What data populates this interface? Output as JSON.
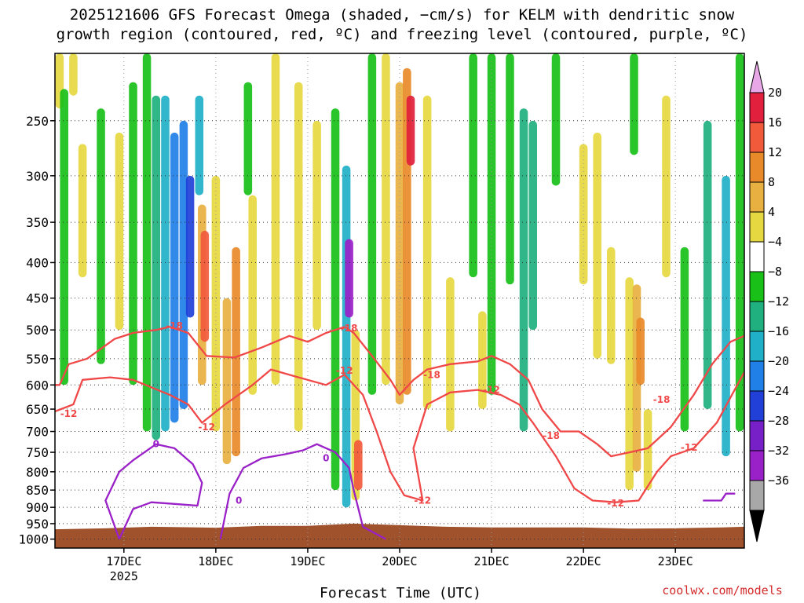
{
  "title_line1": "2025121606 GFS Forecast Omega (shaded, −cm/s) for KELM with dendritic snow",
  "title_line2": "growth region (contoured, red, ºC) and freezing level (contoured, purple, ºC)",
  "xlabel": "Forecast Time (UTC)",
  "credit": "coolwx.com/models",
  "chart_data": {
    "type": "heatmap",
    "title": "2025121606 GFS Forecast Omega (shaded, −cm/s) for KELM with dendritic snow growth region (contoured, red, ºC) and freezing level (contoured, purple, ºC)",
    "xlabel": "Forecast Time (UTC)",
    "ylabel": "",
    "y_scale": "log-pressure",
    "y_reversed": true,
    "ylim": [
      1030,
      200
    ],
    "y_ticks": [
      250,
      300,
      350,
      400,
      450,
      500,
      550,
      600,
      650,
      700,
      750,
      800,
      850,
      900,
      950,
      1000
    ],
    "x_ticks": [
      {
        "day": 17,
        "label": "17DEC",
        "sublabel": "2025"
      },
      {
        "day": 18,
        "label": "18DEC",
        "sublabel": ""
      },
      {
        "day": 19,
        "label": "19DEC",
        "sublabel": ""
      },
      {
        "day": 20,
        "label": "20DEC",
        "sublabel": ""
      },
      {
        "day": 21,
        "label": "21DEC",
        "sublabel": ""
      },
      {
        "day": 22,
        "label": "22DEC",
        "sublabel": ""
      },
      {
        "day": 23,
        "label": "23DEC",
        "sublabel": ""
      }
    ],
    "xlim_days": [
      16.25,
      23.75
    ],
    "grid": true,
    "colorbar": {
      "levels": [
        -36,
        -32,
        -28,
        -24,
        -20,
        -16,
        -12,
        -8,
        -4,
        4,
        8,
        12,
        16,
        20
      ],
      "labels": [
        "20",
        "16",
        "12",
        "8",
        "4",
        "−4",
        "−8",
        "−12",
        "−16",
        "−20",
        "−24",
        "−28",
        "−32",
        "−36"
      ],
      "bin_colors": [
        "#e8a8e8",
        "#e0203c",
        "#f25a3c",
        "#e88a2a",
        "#e8b040",
        "#e6d840",
        "#ffffff",
        "#18c018",
        "#20b080",
        "#20b0c8",
        "#2080e8",
        "#2040d8",
        "#7820c8",
        "#9a20c8",
        "#a8a8a8",
        "#000000"
      ]
    },
    "omega_cells": [
      {
        "day": 16.3,
        "pmin": 200,
        "pmax": 240,
        "value": 5
      },
      {
        "day": 16.45,
        "pmin": 200,
        "pmax": 230,
        "value": 5
      },
      {
        "day": 16.35,
        "pmin": 225,
        "pmax": 600,
        "value": -6
      },
      {
        "day": 16.55,
        "pmin": 270,
        "pmax": 420,
        "value": 5
      },
      {
        "day": 16.75,
        "pmin": 240,
        "pmax": 560,
        "value": -6
      },
      {
        "day": 16.95,
        "pmin": 260,
        "pmax": 500,
        "value": 5
      },
      {
        "day": 17.1,
        "pmin": 220,
        "pmax": 600,
        "value": -6
      },
      {
        "day": 17.25,
        "pmin": 200,
        "pmax": 700,
        "value": -6
      },
      {
        "day": 17.35,
        "pmin": 230,
        "pmax": 720,
        "value": -9
      },
      {
        "day": 17.45,
        "pmin": 230,
        "pmax": 700,
        "value": -14
      },
      {
        "day": 17.55,
        "pmin": 260,
        "pmax": 680,
        "value": -17
      },
      {
        "day": 17.65,
        "pmin": 250,
        "pmax": 650,
        "value": -18
      },
      {
        "day": 17.72,
        "pmin": 300,
        "pmax": 480,
        "value": -21
      },
      {
        "day": 17.82,
        "pmin": 230,
        "pmax": 320,
        "value": -13
      },
      {
        "day": 17.85,
        "pmin": 330,
        "pmax": 600,
        "value": 10
      },
      {
        "day": 17.88,
        "pmin": 360,
        "pmax": 520,
        "value": 18
      },
      {
        "day": 18.0,
        "pmin": 300,
        "pmax": 700,
        "value": 6
      },
      {
        "day": 18.12,
        "pmin": 450,
        "pmax": 780,
        "value": 9
      },
      {
        "day": 18.22,
        "pmin": 380,
        "pmax": 760,
        "value": 13
      },
      {
        "day": 18.35,
        "pmin": 220,
        "pmax": 320,
        "value": -6
      },
      {
        "day": 18.4,
        "pmin": 320,
        "pmax": 620,
        "value": 5
      },
      {
        "day": 18.65,
        "pmin": 200,
        "pmax": 600,
        "value": 5
      },
      {
        "day": 18.9,
        "pmin": 220,
        "pmax": 700,
        "value": 5
      },
      {
        "day": 19.1,
        "pmin": 250,
        "pmax": 500,
        "value": 5
      },
      {
        "day": 19.3,
        "pmin": 240,
        "pmax": 850,
        "value": -7
      },
      {
        "day": 19.42,
        "pmin": 290,
        "pmax": 900,
        "value": -15
      },
      {
        "day": 19.45,
        "pmin": 370,
        "pmax": 480,
        "value": -30
      },
      {
        "day": 19.52,
        "pmin": 500,
        "pmax": 880,
        "value": 7
      },
      {
        "day": 19.55,
        "pmin": 720,
        "pmax": 850,
        "value": 18
      },
      {
        "day": 19.7,
        "pmin": 200,
        "pmax": 620,
        "value": -6
      },
      {
        "day": 19.85,
        "pmin": 200,
        "pmax": 600,
        "value": 5
      },
      {
        "day": 20.0,
        "pmin": 220,
        "pmax": 640,
        "value": 9
      },
      {
        "day": 20.08,
        "pmin": 210,
        "pmax": 620,
        "value": 13
      },
      {
        "day": 20.12,
        "pmin": 230,
        "pmax": 290,
        "value": 21
      },
      {
        "day": 20.3,
        "pmin": 230,
        "pmax": 650,
        "value": 6
      },
      {
        "day": 20.55,
        "pmin": 420,
        "pmax": 700,
        "value": 5
      },
      {
        "day": 20.8,
        "pmin": 200,
        "pmax": 420,
        "value": -6
      },
      {
        "day": 20.9,
        "pmin": 470,
        "pmax": 650,
        "value": 5
      },
      {
        "day": 21.0,
        "pmin": 200,
        "pmax": 620,
        "value": -6
      },
      {
        "day": 21.2,
        "pmin": 200,
        "pmax": 430,
        "value": -6
      },
      {
        "day": 21.35,
        "pmin": 240,
        "pmax": 700,
        "value": -8
      },
      {
        "day": 21.45,
        "pmin": 250,
        "pmax": 500,
        "value": -11
      },
      {
        "day": 21.7,
        "pmin": 200,
        "pmax": 310,
        "value": -7
      },
      {
        "day": 22.0,
        "pmin": 270,
        "pmax": 430,
        "value": 5
      },
      {
        "day": 22.15,
        "pmin": 260,
        "pmax": 550,
        "value": 6
      },
      {
        "day": 22.3,
        "pmin": 380,
        "pmax": 560,
        "value": 5
      },
      {
        "day": 22.5,
        "pmin": 420,
        "pmax": 850,
        "value": 6
      },
      {
        "day": 22.58,
        "pmin": 430,
        "pmax": 800,
        "value": 9
      },
      {
        "day": 22.62,
        "pmin": 480,
        "pmax": 600,
        "value": 14
      },
      {
        "day": 22.7,
        "pmin": 650,
        "pmax": 850,
        "value": 6
      },
      {
        "day": 22.55,
        "pmin": 200,
        "pmax": 280,
        "value": -6
      },
      {
        "day": 22.9,
        "pmin": 230,
        "pmax": 420,
        "value": 5
      },
      {
        "day": 23.1,
        "pmin": 380,
        "pmax": 700,
        "value": -7
      },
      {
        "day": 23.35,
        "pmin": 250,
        "pmax": 650,
        "value": -9
      },
      {
        "day": 23.55,
        "pmin": 300,
        "pmax": 760,
        "value": -13
      },
      {
        "day": 23.7,
        "pmin": 200,
        "pmax": 700,
        "value": -7
      }
    ],
    "series": [
      {
        "name": "-18",
        "color": "#f04848",
        "label_points": [
          [
            17.55,
            493
          ],
          [
            19.45,
            497
          ],
          [
            20.35,
            580
          ],
          [
            21.65,
            710
          ],
          [
            22.85,
            630
          ]
        ],
        "points": [
          [
            16.25,
            600
          ],
          [
            16.3,
            600
          ],
          [
            16.4,
            560
          ],
          [
            16.6,
            550
          ],
          [
            16.9,
            515
          ],
          [
            17.1,
            505
          ],
          [
            17.35,
            500
          ],
          [
            17.5,
            495
          ],
          [
            17.7,
            505
          ],
          [
            17.9,
            545
          ],
          [
            18.2,
            548
          ],
          [
            18.5,
            530
          ],
          [
            18.8,
            510
          ],
          [
            19.0,
            520
          ],
          [
            19.2,
            505
          ],
          [
            19.4,
            495
          ],
          [
            19.5,
            505
          ],
          [
            19.7,
            545
          ],
          [
            19.9,
            590
          ],
          [
            20.0,
            620
          ],
          [
            20.15,
            590
          ],
          [
            20.3,
            570
          ],
          [
            20.55,
            560
          ],
          [
            20.85,
            555
          ],
          [
            21.0,
            545
          ],
          [
            21.2,
            560
          ],
          [
            21.4,
            590
          ],
          [
            21.55,
            650
          ],
          [
            21.75,
            700
          ],
          [
            21.95,
            700
          ],
          [
            22.15,
            730
          ],
          [
            22.3,
            760
          ],
          [
            22.5,
            750
          ],
          [
            22.7,
            740
          ],
          [
            22.95,
            690
          ],
          [
            23.2,
            620
          ],
          [
            23.4,
            560
          ],
          [
            23.6,
            520
          ],
          [
            23.75,
            510
          ]
        ]
      },
      {
        "name": "-12",
        "color": "#f04848",
        "label_points": [
          [
            16.4,
            660
          ],
          [
            17.9,
            690
          ],
          [
            19.4,
            572
          ],
          [
            20.25,
            880
          ],
          [
            21.0,
            610
          ],
          [
            22.35,
            888
          ],
          [
            23.15,
            738
          ]
        ],
        "points": [
          [
            16.25,
            655
          ],
          [
            16.45,
            640
          ],
          [
            16.55,
            590
          ],
          [
            16.85,
            585
          ],
          [
            17.1,
            590
          ],
          [
            17.5,
            620
          ],
          [
            17.7,
            640
          ],
          [
            17.85,
            680
          ],
          [
            18.1,
            640
          ],
          [
            18.4,
            600
          ],
          [
            18.6,
            570
          ],
          [
            18.9,
            585
          ],
          [
            19.2,
            600
          ],
          [
            19.4,
            580
          ],
          [
            19.6,
            620
          ],
          [
            19.75,
            700
          ],
          [
            19.9,
            800
          ],
          [
            20.05,
            865
          ],
          [
            20.25,
            880
          ],
          [
            20.15,
            740
          ],
          [
            20.3,
            640
          ],
          [
            20.55,
            615
          ],
          [
            20.85,
            610
          ],
          [
            21.1,
            620
          ],
          [
            21.3,
            640
          ],
          [
            21.45,
            680
          ],
          [
            21.7,
            760
          ],
          [
            21.9,
            845
          ],
          [
            22.1,
            880
          ],
          [
            22.35,
            885
          ],
          [
            22.6,
            880
          ],
          [
            22.8,
            800
          ],
          [
            22.95,
            760
          ],
          [
            23.2,
            740
          ],
          [
            23.45,
            680
          ],
          [
            23.75,
            575
          ]
        ]
      },
      {
        "name": "0",
        "color": "#9a20c8",
        "label_points": [
          [
            17.35,
            730
          ],
          [
            18.25,
            880
          ],
          [
            19.2,
            765
          ]
        ],
        "points": [
          [
            16.95,
            1000
          ],
          [
            16.8,
            880
          ],
          [
            16.95,
            800
          ],
          [
            17.1,
            770
          ],
          [
            17.35,
            730
          ],
          [
            17.55,
            740
          ],
          [
            17.75,
            780
          ],
          [
            17.85,
            830
          ],
          [
            17.8,
            895
          ],
          [
            17.55,
            890
          ],
          [
            17.3,
            885
          ],
          [
            17.1,
            905
          ],
          [
            16.95,
            1000
          ]
        ]
      },
      {
        "name": "0",
        "color": "#9a20c8",
        "label_points": [],
        "points": [
          [
            18.05,
            1000
          ],
          [
            18.15,
            860
          ],
          [
            18.3,
            790
          ],
          [
            18.5,
            765
          ],
          [
            18.75,
            755
          ],
          [
            18.95,
            745
          ],
          [
            19.1,
            730
          ],
          [
            19.3,
            750
          ],
          [
            19.45,
            790
          ],
          [
            19.5,
            850
          ],
          [
            19.6,
            960
          ],
          [
            19.85,
            1000
          ]
        ]
      },
      {
        "name": "0",
        "color": "#9a20c8",
        "label_points": [],
        "points": [
          [
            23.3,
            880
          ],
          [
            23.5,
            880
          ],
          [
            23.55,
            860
          ],
          [
            23.65,
            860
          ]
        ]
      }
    ],
    "terrain": {
      "color": "#a0522d",
      "pressure_top": [
        [
          16.25,
          968
        ],
        [
          16.8,
          965
        ],
        [
          17.3,
          960
        ],
        [
          18.0,
          963
        ],
        [
          18.5,
          957
        ],
        [
          19.0,
          957
        ],
        [
          19.5,
          950
        ],
        [
          20.0,
          955
        ],
        [
          20.5,
          960
        ],
        [
          21.0,
          962
        ],
        [
          21.5,
          962
        ],
        [
          22.0,
          962
        ],
        [
          22.5,
          966
        ],
        [
          23.0,
          965
        ],
        [
          23.5,
          962
        ],
        [
          23.75,
          960
        ]
      ]
    }
  }
}
